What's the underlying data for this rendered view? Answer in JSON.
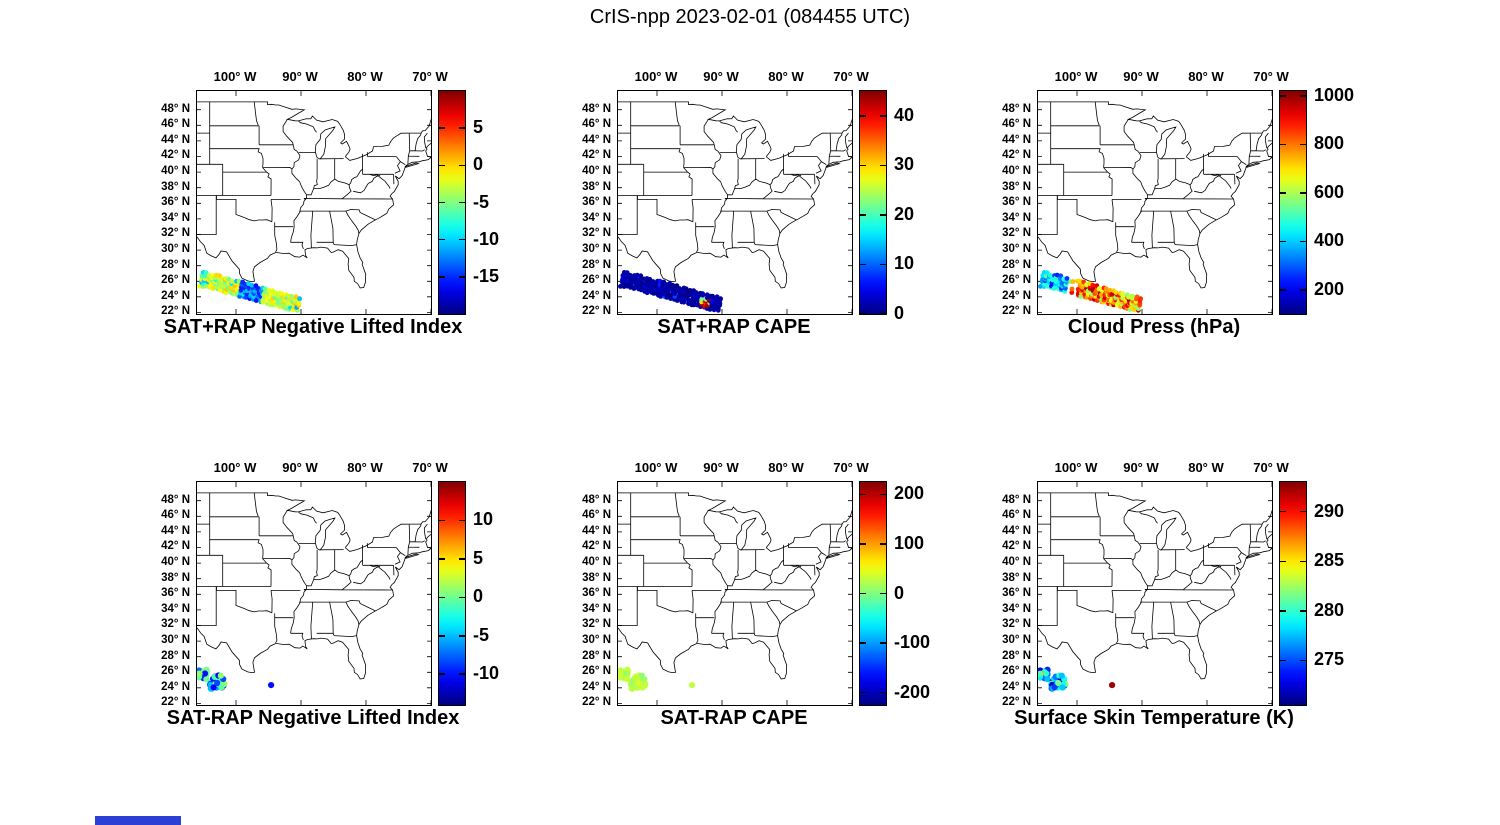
{
  "title": "CrIS-npp 2023-02-01 (084455 UTC)",
  "chart_data": {
    "type": "scatter",
    "subtype": "geographic-scatter-grid",
    "figure_title": "CrIS-npp 2023-02-01 (084455 UTC)",
    "colormap": "jet",
    "grid": {
      "rows": 2,
      "cols": 3
    },
    "map_extent": {
      "lon_min": -106,
      "lon_max": -70,
      "lat_min": 21.8,
      "lat_max": 50.4
    },
    "lon_ticks": [
      {
        "value": -100,
        "label": "100° W"
      },
      {
        "value": -90,
        "label": "90° W"
      },
      {
        "value": -80,
        "label": "80° W"
      },
      {
        "value": -70,
        "label": "70° W"
      }
    ],
    "lat_ticks": [
      {
        "value": 48,
        "label": "48° N"
      },
      {
        "value": 46,
        "label": "46° N"
      },
      {
        "value": 44,
        "label": "44° N"
      },
      {
        "value": 42,
        "label": "42° N"
      },
      {
        "value": 40,
        "label": "40° N"
      },
      {
        "value": 38,
        "label": "38° N"
      },
      {
        "value": 36,
        "label": "36° N"
      },
      {
        "value": 34,
        "label": "34° N"
      },
      {
        "value": 32,
        "label": "32° N"
      },
      {
        "value": 30,
        "label": "30° N"
      },
      {
        "value": 28,
        "label": "28° N"
      },
      {
        "value": 26,
        "label": "26° N"
      },
      {
        "value": 24,
        "label": "24° N"
      },
      {
        "value": 22,
        "label": "22° N"
      }
    ],
    "geometries": {
      "top_swath": {
        "shape": "swath",
        "seed": 7,
        "from": [
          -105.3,
          26.3
        ],
        "to": [
          -90.5,
          23.0
        ],
        "halfwidth": 0.85,
        "cols": 30,
        "rows": 7,
        "jitter": 0.15,
        "dot_r": 2.4
      },
      "bottom_blobs": {
        "shape": "blobs",
        "seed": 11,
        "dot_r": 3.1,
        "blobs": [
          {
            "c": [
              -105.0,
              25.8
            ],
            "rx": 0.85,
            "ry": 0.95,
            "n": 18
          },
          {
            "c": [
              -102.9,
              24.7
            ],
            "rx": 1.5,
            "ry": 1.05,
            "n": 28
          }
        ]
      }
    },
    "panels": [
      {
        "title": "SAT+RAP Negative Lifted Index",
        "cmin": -20,
        "cmax": 10,
        "cticks": [
          5,
          0,
          -5,
          -10,
          -15
        ],
        "geometry": "top_swath",
        "value_rules": [
          {
            "when_t": [
              0.4,
              0.63
            ],
            "range": [
              -16,
              -9
            ]
          },
          {
            "when_t": [
              0.0,
              0.08
            ],
            "prob": 0.5,
            "range": [
              -11,
              -7
            ]
          },
          {
            "prob": 0.07,
            "range": [
              -12,
              -8
            ]
          },
          {
            "range": [
              -6,
              0.5
            ]
          }
        ],
        "extra_points": []
      },
      {
        "title": "SAT+RAP CAPE",
        "cmin": 0,
        "cmax": 45,
        "cticks": [
          40,
          30,
          20,
          10,
          0
        ],
        "geometry": "top_swath",
        "value_rules": [
          {
            "when_t": [
              0.8,
              0.9
            ],
            "when_s": [
              -0.7,
              0.55
            ],
            "prob": 0.8,
            "range": [
              20,
              45
            ]
          },
          {
            "prob": 0.04,
            "range": [
              4,
              10
            ]
          },
          {
            "range": [
              0.3,
              3
            ]
          }
        ],
        "extra_points": []
      },
      {
        "title": "Cloud Press (hPa)",
        "cmin": 100,
        "cmax": 1020,
        "cticks": [
          1000,
          800,
          600,
          400,
          200
        ],
        "geometry": "top_swath",
        "value_rules": [
          {
            "when_t": [
              0.27,
              0.36
            ],
            "drop": 0.6
          },
          {
            "when_t": [
              0.0,
              0.27
            ],
            "range": [
              230,
              520
            ]
          },
          {
            "prob": 0.25,
            "range": [
              550,
              680
            ]
          },
          {
            "range": [
              700,
              980
            ]
          }
        ],
        "extra_points": []
      },
      {
        "title": "SAT-RAP Negative Lifted Index",
        "cmin": -14,
        "cmax": 15,
        "cticks": [
          10,
          5,
          0,
          -5,
          -10
        ],
        "geometry": "bottom_blobs",
        "value_rules": [
          {
            "prob": 0.28,
            "range": [
              -6,
              -3
            ]
          },
          {
            "prob": 0.3,
            "range": [
              -11,
              -7
            ]
          },
          {
            "range": [
              -1.5,
              1.5
            ]
          }
        ],
        "extra_points": [
          {
            "lon": -94.6,
            "lat": 24.35,
            "value": -10
          }
        ]
      },
      {
        "title": "SAT-RAP CAPE",
        "cmin": -225,
        "cmax": 225,
        "cticks": [
          200,
          100,
          0,
          -100,
          -200
        ],
        "geometry": "bottom_blobs",
        "value_rules": [
          {
            "range": [
              5,
              40
            ]
          }
        ],
        "extra_points": [
          {
            "lon": -94.6,
            "lat": 24.35,
            "value": 28
          }
        ]
      },
      {
        "title": "Surface Skin Temperature (K)",
        "cmin": 270.5,
        "cmax": 293,
        "cticks": [
          290,
          285,
          280,
          275
        ],
        "geometry": "bottom_blobs",
        "value_rules": [
          {
            "prob": 0.3,
            "range": [
              272,
              276
            ]
          },
          {
            "prob": 0.18,
            "range": [
              286,
              289
            ]
          },
          {
            "range": [
              277,
              283
            ]
          }
        ],
        "extra_points": [
          {
            "lon": -94.6,
            "lat": 24.35,
            "value": 292.5
          }
        ]
      }
    ]
  }
}
